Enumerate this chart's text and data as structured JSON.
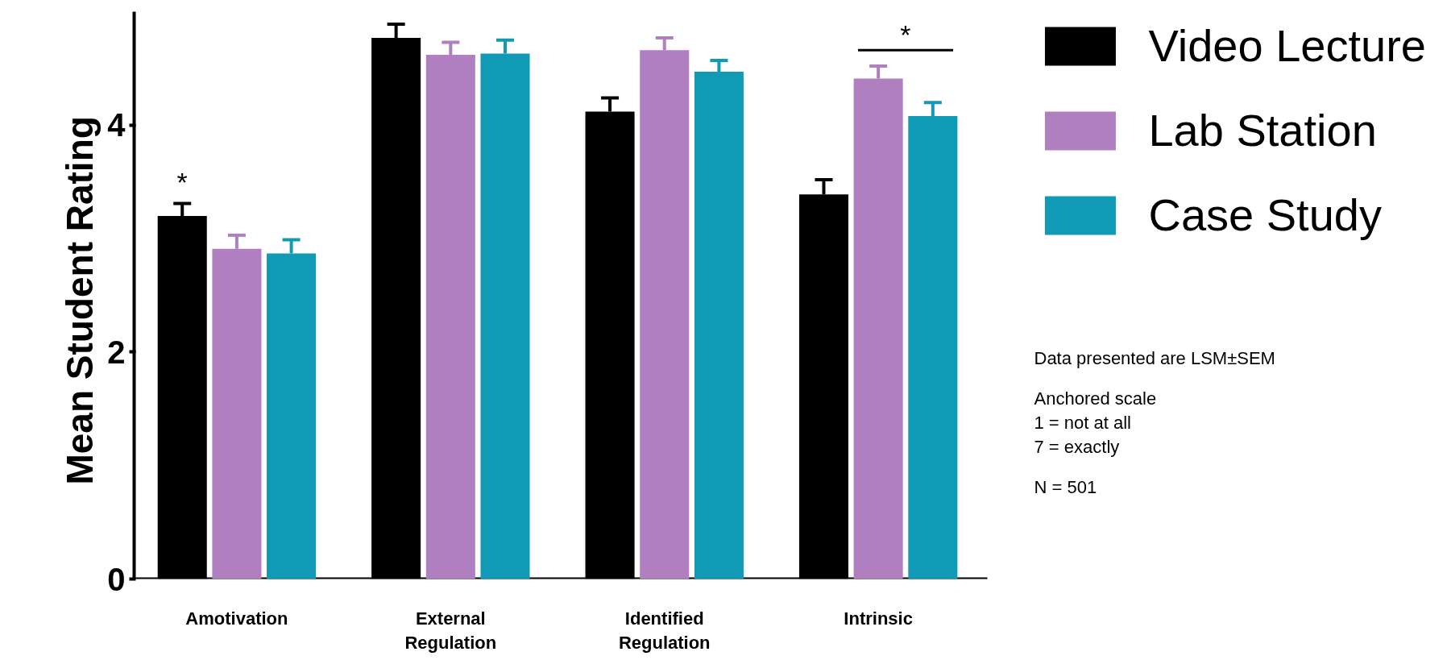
{
  "chart_data": {
    "type": "bar",
    "ylabel": "Mean Student  Rating",
    "categories": [
      "Amotivation",
      "External\nRegulation",
      "Identified\nRegulation",
      "Intrinsic"
    ],
    "series": [
      {
        "name": "Video Lecture",
        "color": "#000000",
        "values": [
          3.2,
          4.77,
          4.12,
          3.39
        ],
        "errors": [
          0.11,
          0.12,
          0.12,
          0.13
        ]
      },
      {
        "name": "Lab Station",
        "color": "#b07fc0",
        "values": [
          2.91,
          4.62,
          4.66,
          4.41
        ],
        "errors": [
          0.12,
          0.11,
          0.11,
          0.11
        ]
      },
      {
        "name": "Case Study",
        "color": "#119ab5",
        "values": [
          2.87,
          4.63,
          4.47,
          4.08
        ],
        "errors": [
          0.12,
          0.12,
          0.1,
          0.12
        ]
      }
    ],
    "ylim": [
      0,
      5
    ],
    "yticks": [
      0,
      2,
      4
    ],
    "grid": false,
    "legend": "top right",
    "annotations": [
      "*",
      "*",
      "Data presented are LSM±SEM",
      "Anchored scale",
      "1 = not at all",
      "7 = exactly",
      "N = 501"
    ]
  }
}
